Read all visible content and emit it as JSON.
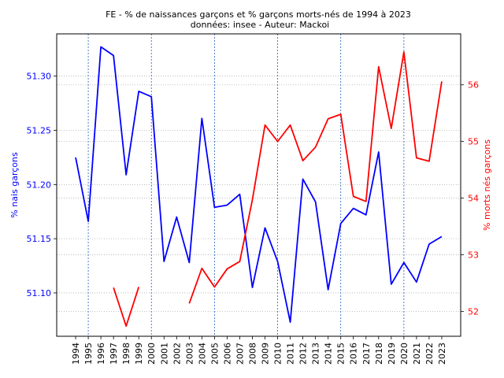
{
  "chart_data": {
    "type": "line",
    "title": "FE - % de naissances garçons et % garçons morts-nés de 1994 à 2023",
    "subtitle": "données: insee - Auteur: Mackoi",
    "x": [
      1994,
      1995,
      1996,
      1997,
      1998,
      1999,
      2000,
      2001,
      2002,
      2003,
      2004,
      2005,
      2006,
      2007,
      2008,
      2009,
      2010,
      2011,
      2012,
      2013,
      2014,
      2015,
      2016,
      2017,
      2018,
      2019,
      2020,
      2021,
      2022,
      2023
    ],
    "x_tick_labels": [
      "1994",
      "1995",
      "1996",
      "1997",
      "1998",
      "1999",
      "2000",
      "2001",
      "2002",
      "2003",
      "2004",
      "2005",
      "2006",
      "2007",
      "2008",
      "2009",
      "2010",
      "2011",
      "2012",
      "2013",
      "2014",
      "2015",
      "2016",
      "2017",
      "2018",
      "2019",
      "2020",
      "2021",
      "2022",
      "2023"
    ],
    "xlim": [
      1992.5,
      2024.5
    ],
    "vertical_gridlines_at": [
      1995,
      2000,
      2005,
      2010,
      2015,
      2020
    ],
    "y_left": {
      "label": "% nais garçons",
      "color": "#0000ff",
      "lim": [
        51.06,
        51.339
      ],
      "ticks": [
        51.1,
        51.15,
        51.2,
        51.25,
        51.3
      ],
      "tick_labels": [
        "51.10",
        "51.15",
        "51.20",
        "51.25",
        "51.30"
      ]
    },
    "y_right": {
      "label": "% morts nés garçons",
      "color": "#ff0000",
      "lim": [
        51.56,
        56.9
      ],
      "ticks": [
        52,
        53,
        54,
        55,
        56
      ],
      "tick_labels": [
        "52",
        "53",
        "54",
        "55",
        "56"
      ]
    },
    "grid": true,
    "series": [
      {
        "axis": "left",
        "color": "#0000ff",
        "values": [
          51.225,
          51.166,
          51.327,
          51.319,
          51.209,
          51.286,
          51.281,
          51.129,
          51.17,
          51.128,
          51.261,
          51.179,
          51.181,
          51.191,
          51.105,
          51.16,
          51.129,
          51.073,
          51.205,
          51.184,
          51.103,
          51.164,
          51.178,
          51.172,
          51.23,
          51.108,
          51.128,
          51.11,
          51.145,
          51.152
        ]
      },
      {
        "axis": "right",
        "color": "#ff0000",
        "values": [
          null,
          null,
          null,
          52.42,
          51.74,
          52.43,
          null,
          null,
          null,
          52.14,
          52.76,
          52.43,
          52.75,
          52.88,
          53.97,
          55.29,
          55.0,
          55.29,
          54.66,
          54.9,
          55.4,
          55.48,
          54.03,
          53.94,
          56.32,
          55.23,
          56.58,
          54.71,
          54.65,
          56.06
        ]
      }
    ]
  }
}
